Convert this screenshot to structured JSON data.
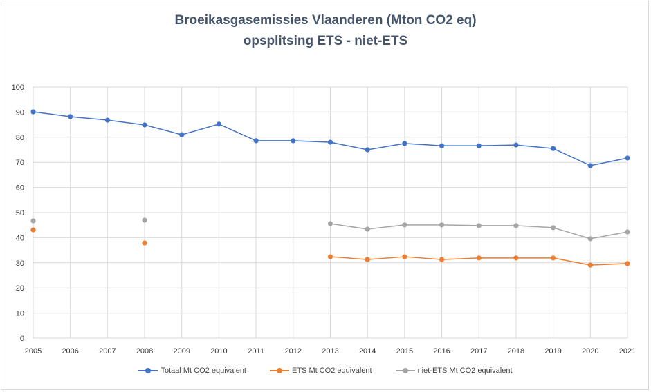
{
  "chart_data": {
    "type": "line",
    "title": "Broeikasgasemissies  Vlaanderen  (Mton CO2 eq)",
    "subtitle": "opsplitsing  ETS - niet-ETS",
    "xlabel": "",
    "ylabel": "",
    "ylim": [
      0,
      100
    ],
    "yticks": [
      0,
      10,
      20,
      30,
      40,
      50,
      60,
      70,
      80,
      90,
      100
    ],
    "grid": true,
    "legend_position": "bottom",
    "x": [
      2005,
      2006,
      2007,
      2008,
      2009,
      2010,
      2011,
      2012,
      2013,
      2014,
      2015,
      2016,
      2017,
      2018,
      2019,
      2020,
      2021
    ],
    "series": [
      {
        "name": "Totaal Mt CO2 equivalent",
        "color": "#4472c4",
        "values": [
          90.1,
          88.2,
          86.8,
          84.9,
          81.0,
          85.2,
          78.6,
          78.6,
          78.0,
          75.0,
          77.5,
          76.6,
          76.6,
          76.9,
          75.5,
          68.7,
          71.7
        ]
      },
      {
        "name": "ETS Mt CO2 equivalent",
        "color": "#ed7d31",
        "values": [
          43.1,
          null,
          null,
          37.9,
          null,
          null,
          null,
          null,
          32.4,
          31.3,
          32.4,
          31.3,
          31.9,
          31.9,
          31.9,
          29.1,
          29.7
        ]
      },
      {
        "name": "niet-ETS Mt CO2 equivalent",
        "color": "#a5a5a5",
        "values": [
          46.7,
          null,
          null,
          47.0,
          null,
          null,
          null,
          null,
          45.6,
          43.4,
          45.1,
          45.1,
          44.8,
          44.8,
          44.0,
          39.6,
          42.3
        ]
      }
    ]
  }
}
